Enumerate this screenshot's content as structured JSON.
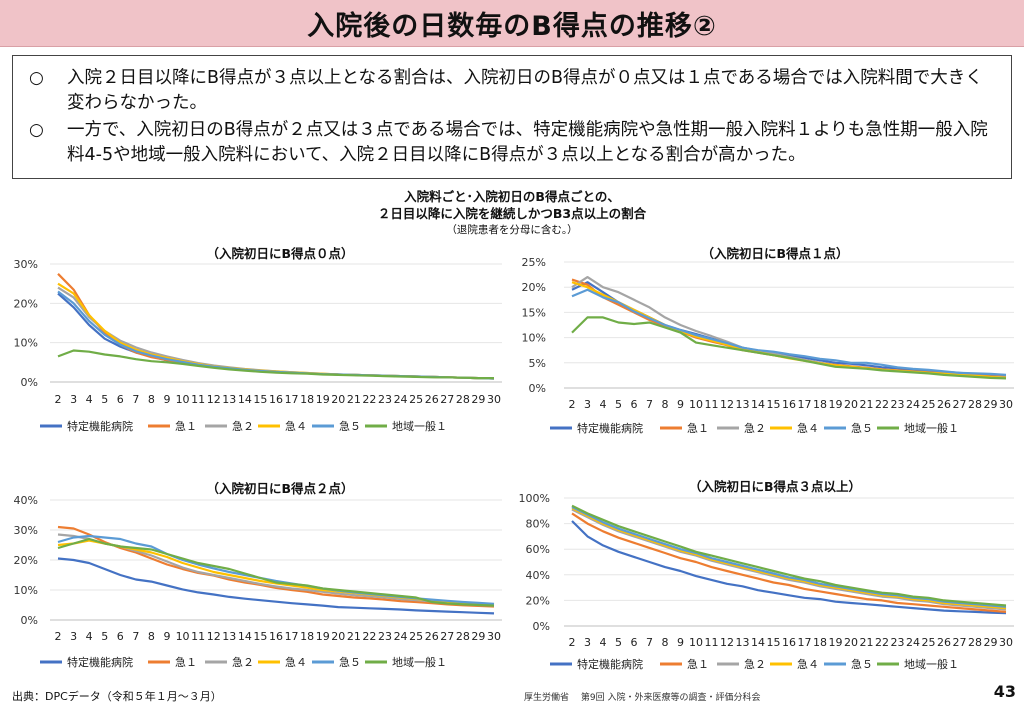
{
  "title": "入院後の日数毎のB得点の推移②",
  "summary": {
    "bullet_mark": "○",
    "bullets": [
      "入院２日目以降にB得点が３点以上となる割合は、入院初日のB得点が０点又は１点である場合では入院料間で大きく変わらなかった。",
      "一方で、入院初日のB得点が２点又は３点である場合では、特定機能病院や急性期一般入院料１よりも急性期一般入院料4-5や地域一般入院料において、入院２日目以降にB得点が３点以上となる割合が高かった。"
    ]
  },
  "charts_title_line1": "入院料ごと･入院初日のB得点ごとの、",
  "charts_title_line2": "２日目以降に入院を継続しかつB3点以上の割合",
  "charts_note": "（退院患者を分母に含む。）",
  "source": "出典：DPCデータ（令和５年１月～３月）",
  "footer_org": "厚生労働省　 第9回 入院・外来医療等の調査・評価分科会",
  "page_number": "43",
  "colors": {
    "特定機能病院": "#4472c4",
    "急１": "#ed7d31",
    "急２": "#a5a5a5",
    "急４": "#ffc000",
    "急５": "#5b9bd5",
    "地域一般１": "#70ad47"
  },
  "chart_data": [
    {
      "type": "line",
      "title": "（入院初日にB得点０点）",
      "x": [
        2,
        3,
        4,
        5,
        6,
        7,
        8,
        9,
        10,
        11,
        12,
        13,
        14,
        15,
        16,
        17,
        18,
        19,
        20,
        21,
        22,
        23,
        24,
        25,
        26,
        27,
        28,
        29,
        30
      ],
      "ylim": [
        0,
        0.3
      ],
      "yticks": [
        0,
        0.1,
        0.2,
        0.3
      ],
      "ytick_labels": [
        "0%",
        "10%",
        "20%",
        "30%"
      ],
      "legend_position": "bottom",
      "series": [
        {
          "name": "特定機能病院",
          "values": [
            0.225,
            0.19,
            0.145,
            0.11,
            0.09,
            0.075,
            0.065,
            0.055,
            0.05,
            0.043,
            0.038,
            0.034,
            0.031,
            0.028,
            0.026,
            0.024,
            0.022,
            0.02,
            0.019,
            0.018,
            0.017,
            0.016,
            0.015,
            0.014,
            0.013,
            0.012,
            0.011,
            0.01,
            0.009
          ]
        },
        {
          "name": "急１",
          "values": [
            0.275,
            0.235,
            0.17,
            0.125,
            0.095,
            0.075,
            0.063,
            0.056,
            0.049,
            0.043,
            0.038,
            0.034,
            0.031,
            0.028,
            0.026,
            0.024,
            0.022,
            0.02,
            0.019,
            0.018,
            0.017,
            0.016,
            0.015,
            0.014,
            0.013,
            0.012,
            0.011,
            0.01,
            0.009
          ]
        },
        {
          "name": "急２",
          "values": [
            0.24,
            0.215,
            0.165,
            0.13,
            0.105,
            0.088,
            0.075,
            0.065,
            0.056,
            0.048,
            0.042,
            0.037,
            0.033,
            0.03,
            0.027,
            0.025,
            0.023,
            0.021,
            0.019,
            0.018,
            0.017,
            0.016,
            0.015,
            0.014,
            0.013,
            0.012,
            0.011,
            0.01,
            0.009
          ]
        },
        {
          "name": "急４",
          "values": [
            0.25,
            0.225,
            0.17,
            0.13,
            0.1,
            0.082,
            0.07,
            0.061,
            0.053,
            0.046,
            0.04,
            0.036,
            0.032,
            0.029,
            0.027,
            0.025,
            0.023,
            0.021,
            0.019,
            0.018,
            0.017,
            0.016,
            0.015,
            0.014,
            0.013,
            0.012,
            0.011,
            0.01,
            0.009
          ]
        },
        {
          "name": "急５",
          "values": [
            0.23,
            0.2,
            0.155,
            0.12,
            0.095,
            0.078,
            0.067,
            0.058,
            0.051,
            0.044,
            0.039,
            0.035,
            0.031,
            0.028,
            0.026,
            0.024,
            0.022,
            0.02,
            0.019,
            0.018,
            0.017,
            0.016,
            0.015,
            0.014,
            0.013,
            0.012,
            0.011,
            0.01,
            0.009
          ]
        },
        {
          "name": "地域一般１",
          "values": [
            0.065,
            0.08,
            0.077,
            0.07,
            0.065,
            0.058,
            0.053,
            0.05,
            0.046,
            0.041,
            0.036,
            0.032,
            0.029,
            0.026,
            0.024,
            0.022,
            0.021,
            0.019,
            0.018,
            0.017,
            0.016,
            0.015,
            0.014,
            0.013,
            0.012,
            0.012,
            0.011,
            0.01,
            0.01
          ]
        }
      ]
    },
    {
      "type": "line",
      "title": "（入院初日にB得点１点）",
      "x": [
        2,
        3,
        4,
        5,
        6,
        7,
        8,
        9,
        10,
        11,
        12,
        13,
        14,
        15,
        16,
        17,
        18,
        19,
        20,
        21,
        22,
        23,
        24,
        25,
        26,
        27,
        28,
        29,
        30
      ],
      "ylim": [
        0,
        0.25
      ],
      "yticks": [
        0,
        0.05,
        0.1,
        0.15,
        0.2,
        0.25
      ],
      "ytick_labels": [
        "0%",
        "5%",
        "10%",
        "15%",
        "20%",
        "25%"
      ],
      "legend_position": "bottom",
      "series": [
        {
          "name": "特定機能病院",
          "values": [
            0.195,
            0.21,
            0.19,
            0.17,
            0.155,
            0.14,
            0.125,
            0.115,
            0.107,
            0.098,
            0.09,
            0.08,
            0.074,
            0.07,
            0.065,
            0.06,
            0.055,
            0.05,
            0.048,
            0.045,
            0.041,
            0.039,
            0.036,
            0.034,
            0.032,
            0.03,
            0.028,
            0.026,
            0.025
          ]
        },
        {
          "name": "急１",
          "values": [
            0.215,
            0.205,
            0.18,
            0.165,
            0.15,
            0.135,
            0.123,
            0.112,
            0.1,
            0.092,
            0.085,
            0.075,
            0.07,
            0.065,
            0.06,
            0.055,
            0.05,
            0.046,
            0.043,
            0.04,
            0.037,
            0.035,
            0.033,
            0.031,
            0.029,
            0.027,
            0.025,
            0.023,
            0.022
          ]
        },
        {
          "name": "急２",
          "values": [
            0.2,
            0.22,
            0.2,
            0.19,
            0.175,
            0.16,
            0.14,
            0.125,
            0.113,
            0.103,
            0.092,
            0.08,
            0.074,
            0.068,
            0.062,
            0.056,
            0.05,
            0.045,
            0.042,
            0.039,
            0.036,
            0.034,
            0.032,
            0.03,
            0.028,
            0.026,
            0.024,
            0.022,
            0.021
          ]
        },
        {
          "name": "急４",
          "values": [
            0.21,
            0.2,
            0.185,
            0.17,
            0.155,
            0.14,
            0.125,
            0.113,
            0.102,
            0.094,
            0.086,
            0.077,
            0.071,
            0.065,
            0.059,
            0.054,
            0.049,
            0.045,
            0.042,
            0.039,
            0.036,
            0.034,
            0.032,
            0.03,
            0.028,
            0.026,
            0.024,
            0.022,
            0.02
          ]
        },
        {
          "name": "急５",
          "values": [
            0.182,
            0.195,
            0.18,
            0.17,
            0.152,
            0.138,
            0.125,
            0.115,
            0.105,
            0.097,
            0.089,
            0.08,
            0.075,
            0.072,
            0.067,
            0.063,
            0.058,
            0.055,
            0.05,
            0.05,
            0.046,
            0.041,
            0.038,
            0.036,
            0.033,
            0.03,
            0.029,
            0.028,
            0.026
          ]
        },
        {
          "name": "地域一般１",
          "values": [
            0.11,
            0.14,
            0.14,
            0.13,
            0.127,
            0.13,
            0.12,
            0.11,
            0.09,
            0.085,
            0.08,
            0.075,
            0.07,
            0.065,
            0.06,
            0.054,
            0.048,
            0.042,
            0.04,
            0.038,
            0.035,
            0.033,
            0.031,
            0.029,
            0.026,
            0.024,
            0.022,
            0.02,
            0.019
          ]
        }
      ]
    },
    {
      "type": "line",
      "title": "（入院初日にB得点２点）",
      "x": [
        2,
        3,
        4,
        5,
        6,
        7,
        8,
        9,
        10,
        11,
        12,
        13,
        14,
        15,
        16,
        17,
        18,
        19,
        20,
        21,
        22,
        23,
        24,
        25,
        26,
        27,
        28,
        29,
        30
      ],
      "ylim": [
        0,
        0.4
      ],
      "yticks": [
        0,
        0.1,
        0.2,
        0.3,
        0.4
      ],
      "ytick_labels": [
        "0%",
        "10%",
        "20%",
        "30%",
        "40%"
      ],
      "legend_position": "bottom",
      "series": [
        {
          "name": "特定機能病院",
          "values": [
            0.205,
            0.2,
            0.19,
            0.17,
            0.15,
            0.135,
            0.128,
            0.115,
            0.102,
            0.092,
            0.085,
            0.077,
            0.071,
            0.066,
            0.061,
            0.056,
            0.052,
            0.048,
            0.043,
            0.041,
            0.039,
            0.037,
            0.035,
            0.032,
            0.03,
            0.028,
            0.026,
            0.024,
            0.022
          ]
        },
        {
          "name": "急１",
          "values": [
            0.31,
            0.305,
            0.285,
            0.26,
            0.24,
            0.225,
            0.205,
            0.185,
            0.17,
            0.157,
            0.148,
            0.135,
            0.125,
            0.117,
            0.107,
            0.1,
            0.094,
            0.085,
            0.08,
            0.075,
            0.072,
            0.068,
            0.063,
            0.06,
            0.056,
            0.052,
            0.049,
            0.047,
            0.045
          ]
        },
        {
          "name": "急２",
          "values": [
            0.285,
            0.28,
            0.27,
            0.255,
            0.245,
            0.23,
            0.215,
            0.195,
            0.175,
            0.16,
            0.15,
            0.14,
            0.13,
            0.12,
            0.112,
            0.105,
            0.1,
            0.094,
            0.088,
            0.083,
            0.079,
            0.075,
            0.07,
            0.066,
            0.062,
            0.058,
            0.054,
            0.05,
            0.048
          ]
        },
        {
          "name": "急４",
          "values": [
            0.25,
            0.255,
            0.265,
            0.255,
            0.245,
            0.235,
            0.225,
            0.21,
            0.19,
            0.175,
            0.16,
            0.15,
            0.14,
            0.13,
            0.122,
            0.115,
            0.108,
            0.1,
            0.095,
            0.09,
            0.085,
            0.08,
            0.075,
            0.07,
            0.066,
            0.062,
            0.058,
            0.055,
            0.052
          ]
        },
        {
          "name": "急５",
          "values": [
            0.26,
            0.275,
            0.28,
            0.275,
            0.27,
            0.255,
            0.245,
            0.22,
            0.2,
            0.185,
            0.172,
            0.16,
            0.15,
            0.14,
            0.13,
            0.122,
            0.114,
            0.105,
            0.098,
            0.092,
            0.087,
            0.082,
            0.077,
            0.072,
            0.068,
            0.064,
            0.06,
            0.057,
            0.054
          ]
        },
        {
          "name": "地域一般１",
          "values": [
            0.24,
            0.255,
            0.27,
            0.255,
            0.245,
            0.24,
            0.235,
            0.22,
            0.205,
            0.19,
            0.18,
            0.17,
            0.155,
            0.14,
            0.125,
            0.12,
            0.115,
            0.105,
            0.1,
            0.095,
            0.09,
            0.085,
            0.08,
            0.075,
            0.06,
            0.055,
            0.052,
            0.05,
            0.048
          ]
        }
      ]
    },
    {
      "type": "line",
      "title": "（入院初日にB得点３点以上）",
      "x": [
        2,
        3,
        4,
        5,
        6,
        7,
        8,
        9,
        10,
        11,
        12,
        13,
        14,
        15,
        16,
        17,
        18,
        19,
        20,
        21,
        22,
        23,
        24,
        25,
        26,
        27,
        28,
        29,
        30
      ],
      "ylim": [
        0,
        1.0
      ],
      "yticks": [
        0,
        0.2,
        0.4,
        0.6,
        0.8,
        1.0
      ],
      "ytick_labels": [
        "0%",
        "20%",
        "40%",
        "60%",
        "80%",
        "100%"
      ],
      "legend_position": "bottom",
      "series": [
        {
          "name": "特定機能病院",
          "values": [
            0.82,
            0.7,
            0.63,
            0.58,
            0.54,
            0.5,
            0.46,
            0.43,
            0.39,
            0.36,
            0.33,
            0.31,
            0.28,
            0.26,
            0.24,
            0.22,
            0.21,
            0.19,
            0.18,
            0.17,
            0.16,
            0.15,
            0.14,
            0.13,
            0.12,
            0.115,
            0.11,
            0.105,
            0.1
          ]
        },
        {
          "name": "急１",
          "values": [
            0.88,
            0.8,
            0.74,
            0.69,
            0.65,
            0.61,
            0.57,
            0.53,
            0.5,
            0.46,
            0.43,
            0.4,
            0.37,
            0.34,
            0.32,
            0.29,
            0.27,
            0.25,
            0.23,
            0.21,
            0.2,
            0.18,
            0.17,
            0.16,
            0.15,
            0.14,
            0.13,
            0.12,
            0.11
          ]
        },
        {
          "name": "急２",
          "values": [
            0.91,
            0.85,
            0.79,
            0.74,
            0.7,
            0.66,
            0.62,
            0.58,
            0.55,
            0.51,
            0.48,
            0.45,
            0.42,
            0.39,
            0.36,
            0.34,
            0.31,
            0.29,
            0.27,
            0.25,
            0.23,
            0.22,
            0.2,
            0.19,
            0.17,
            0.16,
            0.15,
            0.14,
            0.13
          ]
        },
        {
          "name": "急４",
          "values": [
            0.92,
            0.86,
            0.8,
            0.75,
            0.71,
            0.67,
            0.63,
            0.59,
            0.56,
            0.52,
            0.49,
            0.46,
            0.43,
            0.4,
            0.37,
            0.35,
            0.32,
            0.3,
            0.28,
            0.26,
            0.24,
            0.23,
            0.21,
            0.2,
            0.18,
            0.17,
            0.16,
            0.15,
            0.14
          ]
        },
        {
          "name": "急５",
          "values": [
            0.93,
            0.87,
            0.81,
            0.76,
            0.72,
            0.68,
            0.64,
            0.6,
            0.57,
            0.53,
            0.5,
            0.47,
            0.44,
            0.41,
            0.38,
            0.36,
            0.33,
            0.31,
            0.29,
            0.27,
            0.25,
            0.24,
            0.22,
            0.21,
            0.19,
            0.18,
            0.17,
            0.16,
            0.15
          ]
        },
        {
          "name": "地域一般１",
          "values": [
            0.94,
            0.88,
            0.83,
            0.78,
            0.74,
            0.7,
            0.66,
            0.62,
            0.58,
            0.55,
            0.52,
            0.49,
            0.46,
            0.43,
            0.4,
            0.37,
            0.35,
            0.32,
            0.3,
            0.28,
            0.26,
            0.25,
            0.23,
            0.22,
            0.2,
            0.19,
            0.18,
            0.17,
            0.16
          ]
        }
      ]
    }
  ]
}
